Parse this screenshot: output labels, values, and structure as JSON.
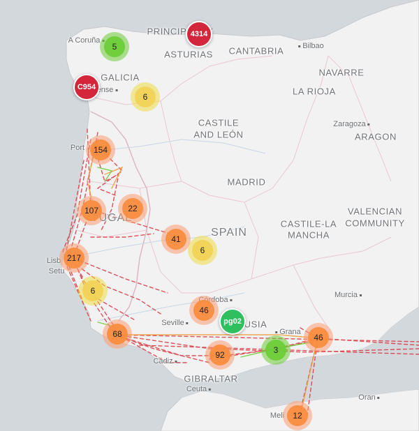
{
  "regions": [
    {
      "id": "galicia",
      "text": "GALICIA"
    },
    {
      "id": "principality",
      "text": "PRINCIPALITY"
    },
    {
      "id": "asturias",
      "text": "ASTURIAS"
    },
    {
      "id": "cantabria",
      "text": "CANTABRIA"
    },
    {
      "id": "navarre",
      "text": "NAVARRE"
    },
    {
      "id": "la-rioja",
      "text": "LA RIOJA"
    },
    {
      "id": "castile-leon-1",
      "text": "CASTILE"
    },
    {
      "id": "castile-leon-2",
      "text": "AND LEÓN"
    },
    {
      "id": "aragon",
      "text": "ARAGON"
    },
    {
      "id": "madrid",
      "text": "MADRID"
    },
    {
      "id": "spain",
      "text": "SPAIN"
    },
    {
      "id": "portugal",
      "text": "TUGAL"
    },
    {
      "id": "castile-mancha-1",
      "text": "CASTILE-LA"
    },
    {
      "id": "castile-mancha-2",
      "text": "MANCHA"
    },
    {
      "id": "valencian-1",
      "text": "VALENCIAN"
    },
    {
      "id": "valencian-2",
      "text": "COMMUNITY"
    },
    {
      "id": "andalusia",
      "text": "USIA"
    },
    {
      "id": "gibraltar",
      "text": "GIBRALTAR"
    }
  ],
  "cities": [
    {
      "id": "a-coruna",
      "text": "A Coruña"
    },
    {
      "id": "ourense",
      "text": "ense"
    },
    {
      "id": "bilbao",
      "text": "Bilbao"
    },
    {
      "id": "zaragoza",
      "text": "Zaragoza"
    },
    {
      "id": "porto",
      "text": "Port"
    },
    {
      "id": "lisbon",
      "text": "Lisb"
    },
    {
      "id": "setubal",
      "text": "Setu"
    },
    {
      "id": "cordoba",
      "text": "Córdoba"
    },
    {
      "id": "seville",
      "text": "Seville"
    },
    {
      "id": "granada",
      "text": "Grana"
    },
    {
      "id": "murcia",
      "text": "Murcia"
    },
    {
      "id": "cadiz",
      "text": "Cádiz"
    },
    {
      "id": "ceuta",
      "text": "Ceuta"
    },
    {
      "id": "oran",
      "text": "Oran"
    },
    {
      "id": "melilla",
      "text": "Meli"
    }
  ],
  "clusters": [
    {
      "id": "c1",
      "count": "5",
      "level": "green"
    },
    {
      "id": "c2",
      "count": "6",
      "level": "yellow"
    },
    {
      "id": "c3",
      "count": "154",
      "level": "orange"
    },
    {
      "id": "c4",
      "count": "107",
      "level": "orange"
    },
    {
      "id": "c5",
      "count": "22",
      "level": "orange"
    },
    {
      "id": "c6",
      "count": "41",
      "level": "orange"
    },
    {
      "id": "c7",
      "count": "6",
      "level": "yellow"
    },
    {
      "id": "c8",
      "count": "217",
      "level": "orange"
    },
    {
      "id": "c9",
      "count": "6",
      "level": "yellow"
    },
    {
      "id": "c10",
      "count": "46",
      "level": "orange"
    },
    {
      "id": "c11",
      "count": "68",
      "level": "orange"
    },
    {
      "id": "c12",
      "count": "92",
      "level": "orange"
    },
    {
      "id": "c13",
      "count": "3",
      "level": "green"
    },
    {
      "id": "c14",
      "count": "46",
      "level": "orange"
    },
    {
      "id": "c15",
      "count": "12",
      "level": "orange"
    }
  ],
  "markers": [
    {
      "id": "m1",
      "label": "4314",
      "color": "#d3263a"
    },
    {
      "id": "m2",
      "label": "C954",
      "color": "#d3263a"
    },
    {
      "id": "m3",
      "label": "pg02",
      "color": "#2fbf5f"
    }
  ],
  "colors": {
    "sea": "#d3d8dc",
    "land": "#f2f2f2",
    "route_red": "#d9343f",
    "route_orange": "#f0a040",
    "route_green": "#6ecc39"
  }
}
